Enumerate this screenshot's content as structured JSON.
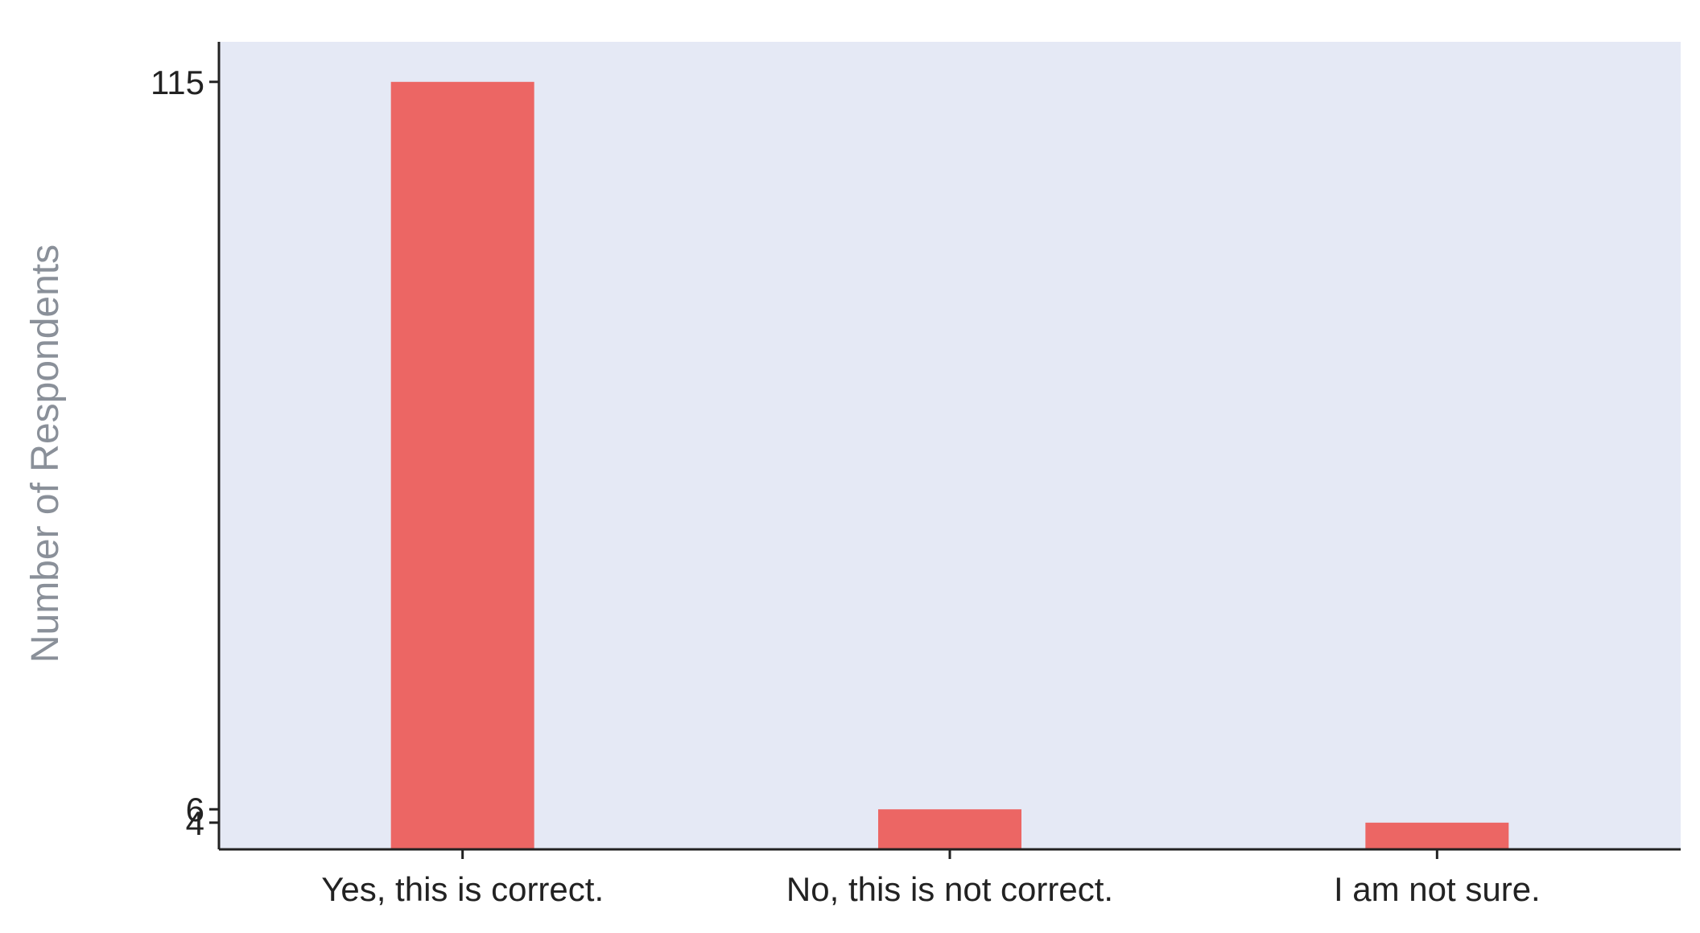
{
  "chart_data": {
    "type": "bar",
    "title": "",
    "xlabel": "",
    "ylabel": "Number of Respondents",
    "categories": [
      "Yes, this is correct.",
      "No, this is not correct.",
      "I am not sure."
    ],
    "values": [
      115,
      6,
      4
    ],
    "yticks": [
      4,
      6,
      115
    ],
    "ylim": [
      0,
      121
    ],
    "grid": false,
    "legend": "none",
    "colors": {
      "bar": "#ec6664",
      "plot_background": "#e5e9f5",
      "axis": "#222222",
      "axis_title": "#8a9099"
    }
  }
}
